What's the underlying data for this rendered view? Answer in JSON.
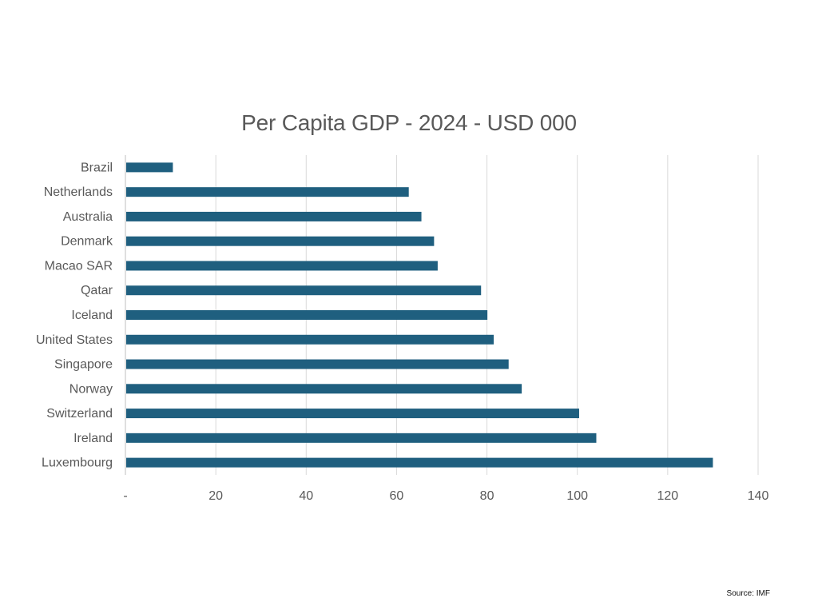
{
  "chart_data": {
    "type": "bar",
    "orientation": "horizontal",
    "title": "Per Capita GDP - 2024 - USD 000",
    "xlabel": "",
    "ylabel": "",
    "categories": [
      "Brazil",
      "Netherlands",
      "Australia",
      "Denmark",
      "Macao SAR",
      "Qatar",
      "Iceland",
      "United States",
      "Singapore",
      "Norway",
      "Switzerland",
      "Ireland",
      "Luxembourg"
    ],
    "values": [
      10.5,
      62.7,
      65.5,
      68.3,
      69.1,
      78.7,
      80.1,
      81.5,
      84.8,
      87.7,
      100.4,
      104.2,
      130.0
    ],
    "xlim": [
      0,
      140
    ],
    "ticks": [
      0,
      20,
      40,
      60,
      80,
      100,
      120,
      140
    ],
    "tick_labels": [
      "-",
      "20",
      "40",
      "60",
      "80",
      "100",
      "120",
      "140"
    ],
    "grid": true,
    "legend": "none",
    "bar_color": "#1F5F7F",
    "grid_color": "#D9D9D9"
  },
  "footer": {
    "source": "Source: IMF"
  }
}
